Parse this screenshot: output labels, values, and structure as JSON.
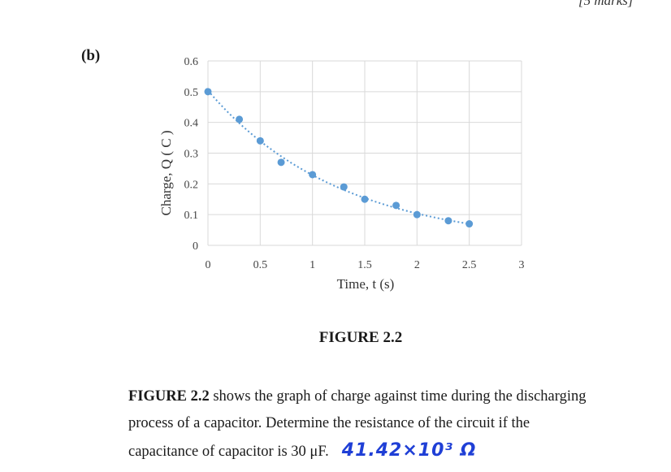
{
  "header": {
    "clipped_text": "[5 marks]"
  },
  "part_label": "(b)",
  "chart_data": {
    "type": "scatter",
    "title": "",
    "xlabel": "Time, t (s)",
    "ylabel": "Charge, Q ( C )",
    "xlim": [
      0,
      3
    ],
    "ylim": [
      0,
      0.6
    ],
    "x_ticks": [
      "0",
      "0.5",
      "1",
      "1.5",
      "2",
      "2.5",
      "3"
    ],
    "y_ticks": [
      "0",
      "0.1",
      "0.2",
      "0.3",
      "0.4",
      "0.5",
      "0.6"
    ],
    "grid": true,
    "legend": "none",
    "trendline": "exponential, dotted",
    "marker_color": "#5b9bd5",
    "x": [
      0,
      0.3,
      0.5,
      0.7,
      1.0,
      1.3,
      1.5,
      1.8,
      2.0,
      2.3,
      2.5
    ],
    "y": [
      0.5,
      0.41,
      0.34,
      0.27,
      0.23,
      0.19,
      0.15,
      0.13,
      0.1,
      0.08,
      0.07
    ]
  },
  "figure_caption": "FIGURE 2.2",
  "question": {
    "fig_ref": "FIGURE 2.2",
    "line1_rest": " shows the graph of charge against time during the discharging",
    "line2": "process of a capacitor. Determine the resistance of the circuit if the",
    "line3": "capacitance of capacitor is 30 μF.",
    "handwritten_answer": "41.42×10³ Ω"
  }
}
